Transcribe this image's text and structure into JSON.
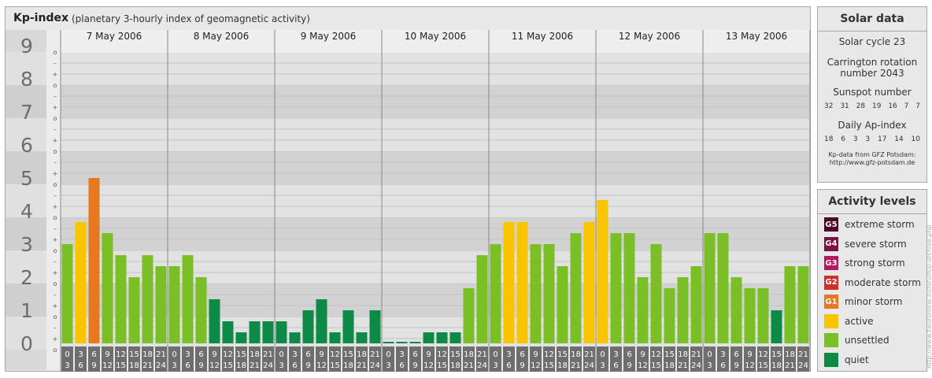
{
  "header": {
    "title": "Kp-index",
    "subtitle": "(planetary 3-hourly index of geomagnetic activity)"
  },
  "chart_data": {
    "type": "bar",
    "title": "Kp-index",
    "subtitle": "(planetary 3-hourly index of geomagnetic activity)",
    "ylim": [
      0,
      9
    ],
    "y_ticks": [
      "0",
      "1",
      "2",
      "3",
      "4",
      "5",
      "6",
      "7",
      "8",
      "9"
    ],
    "sub_ticks": [
      "–",
      "o",
      "+"
    ],
    "days": [
      "7 May 2006",
      "8 May 2006",
      "9 May 2006",
      "10 May 2006",
      "11 May 2006",
      "12 May 2006",
      "13 May 2006"
    ],
    "interval_top": [
      "0",
      "3",
      "6",
      "9",
      "12",
      "15",
      "18",
      "21"
    ],
    "interval_bottom": [
      "3",
      "6",
      "9",
      "12",
      "15",
      "18",
      "21",
      "24"
    ],
    "values": [
      3.0,
      3.667,
      5.0,
      3.333,
      2.667,
      2.0,
      2.667,
      2.333,
      2.333,
      2.667,
      2.0,
      1.333,
      0.667,
      0.333,
      0.667,
      0.667,
      0.667,
      0.333,
      1.0,
      1.333,
      0.333,
      1.0,
      0.333,
      1.0,
      0.0,
      0.0,
      0.0,
      0.333,
      0.333,
      0.333,
      1.667,
      2.667,
      3.0,
      3.667,
      3.667,
      3.0,
      3.0,
      2.333,
      3.333,
      3.667,
      4.333,
      3.333,
      3.333,
      2.0,
      3.0,
      1.667,
      2.0,
      2.333,
      3.333,
      3.333,
      2.0,
      1.667,
      1.667,
      1.0,
      2.333,
      2.333
    ],
    "colors": {
      "quiet": "#0e8a47",
      "unsettled": "#7bbf26",
      "active": "#fbc400",
      "minor_storm": "#e6781e",
      "moderate_storm": "#d0302a",
      "strong_storm": "#b4185e",
      "severe_storm": "#7a1244",
      "extreme_storm": "#4a0726"
    }
  },
  "solar": {
    "heading": "Solar data",
    "cycle": "Solar cycle 23",
    "carrington_1": "Carrington rotation",
    "carrington_2": "number 2043",
    "sunspot_heading": "Sunspot number",
    "sunspots": [
      "32",
      "31",
      "28",
      "19",
      "16",
      "7",
      "7"
    ],
    "ap_heading": "Daily Ap-index",
    "ap": [
      "18",
      "6",
      "3",
      "3",
      "17",
      "14",
      "10"
    ],
    "credit_1": "Kp-data from GFZ Potsdam:",
    "credit_2": "http://www.gfz-potsdam.de"
  },
  "activity": {
    "heading": "Activity levels",
    "levels": [
      {
        "code": "G5",
        "label": "extreme storm",
        "color": "#4a0726"
      },
      {
        "code": "G4",
        "label": "severe storm",
        "color": "#7a1244"
      },
      {
        "code": "G3",
        "label": "strong storm",
        "color": "#b4185e"
      },
      {
        "code": "G2",
        "label": "moderate storm",
        "color": "#d0302a"
      },
      {
        "code": "G1",
        "label": "minor storm",
        "color": "#e6781e"
      },
      {
        "code": "",
        "label": "active",
        "color": "#fbc400"
      },
      {
        "code": "",
        "label": "unsettled",
        "color": "#7bbf26"
      },
      {
        "code": "",
        "label": "quiet",
        "color": "#0e8a47"
      }
    ]
  },
  "vertical_credit": "http://www.fleuronline.nl/forum/p-archive.php"
}
